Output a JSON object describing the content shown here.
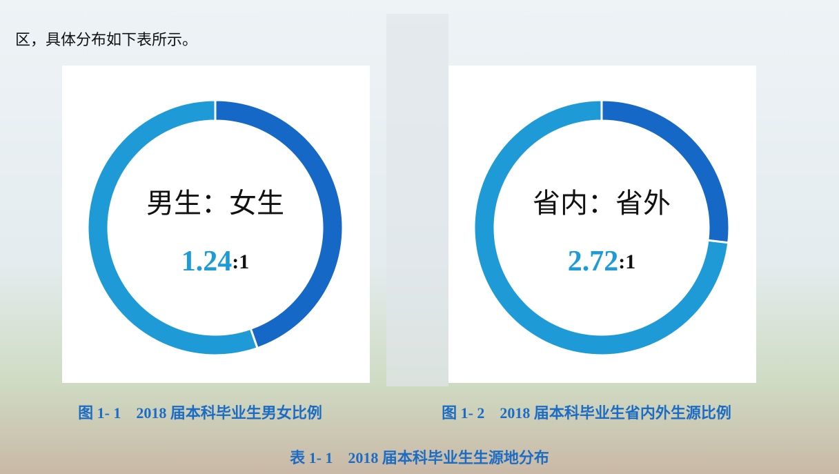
{
  "body_text": "区，具体分布如下表所示。",
  "chart_data": [
    {
      "type": "donut",
      "label": "男生：女生",
      "values": [
        1,
        1.24
      ],
      "colors": [
        "#1568c6",
        "#1e9bd7"
      ],
      "ratio_separator": ":",
      "caption": "图 1- 1　2018 届本科毕业生男女比例"
    },
    {
      "type": "donut",
      "label": "省内：省外",
      "values": [
        1,
        2.72
      ],
      "colors": [
        "#1568c6",
        "#1e9bd7"
      ],
      "ratio_separator": ":",
      "caption": "图 1- 2　2018 届本科毕业生省内外生源比例"
    }
  ],
  "table_caption": "表 1- 1　2018 届本科毕业生生源地分布"
}
